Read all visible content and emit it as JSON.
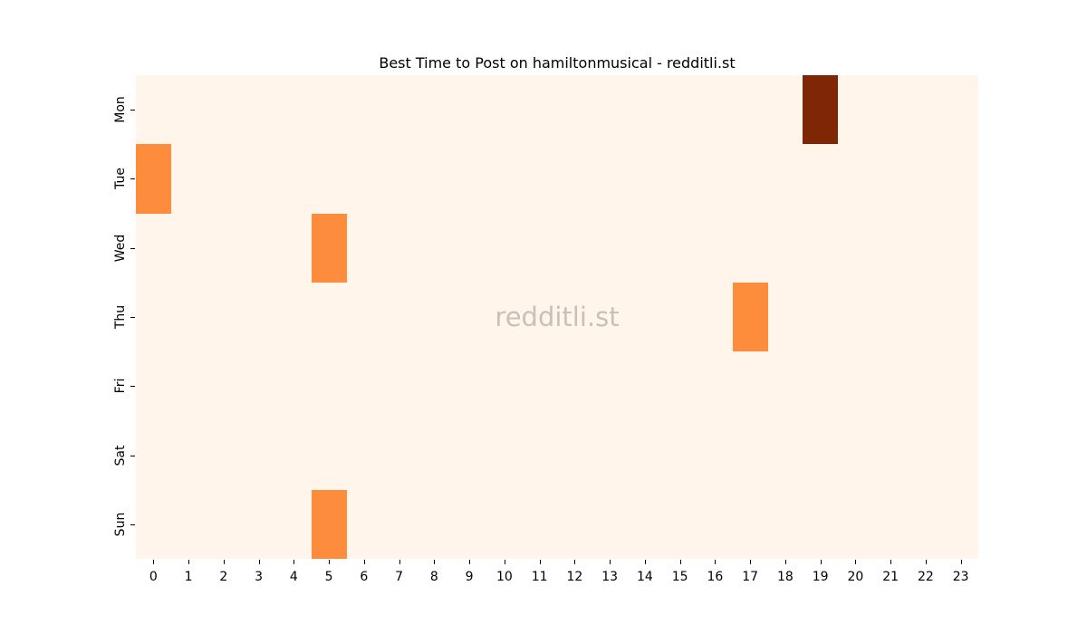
{
  "figure": {
    "background": "#ffffff"
  },
  "watermark": {
    "text": "redditli.st",
    "color": "#c8c1ba"
  },
  "chart_data": {
    "type": "heatmap",
    "title": "Best Time to Post on hamiltonmusical - redditli.st",
    "xlabel": "",
    "ylabel": "",
    "x_labels": [
      "0",
      "1",
      "2",
      "3",
      "4",
      "5",
      "6",
      "7",
      "8",
      "9",
      "10",
      "11",
      "12",
      "13",
      "14",
      "15",
      "16",
      "17",
      "18",
      "19",
      "20",
      "21",
      "22",
      "23"
    ],
    "y_labels": [
      "Mon",
      "Tue",
      "Wed",
      "Thu",
      "Fri",
      "Sat",
      "Sun"
    ],
    "colormap": "Oranges",
    "value_colors": {
      "0": "#fff5eb",
      "1": "#fd8d3c",
      "2": "#7f2704"
    },
    "matrix": [
      [
        0,
        0,
        0,
        0,
        0,
        0,
        0,
        0,
        0,
        0,
        0,
        0,
        0,
        0,
        0,
        0,
        0,
        0,
        0,
        2,
        0,
        0,
        0,
        0
      ],
      [
        1,
        0,
        0,
        0,
        0,
        0,
        0,
        0,
        0,
        0,
        0,
        0,
        0,
        0,
        0,
        0,
        0,
        0,
        0,
        0,
        0,
        0,
        0,
        0
      ],
      [
        0,
        0,
        0,
        0,
        0,
        1,
        0,
        0,
        0,
        0,
        0,
        0,
        0,
        0,
        0,
        0,
        0,
        0,
        0,
        0,
        0,
        0,
        0,
        0
      ],
      [
        0,
        0,
        0,
        0,
        0,
        0,
        0,
        0,
        0,
        0,
        0,
        0,
        0,
        0,
        0,
        0,
        0,
        1,
        0,
        0,
        0,
        0,
        0,
        0
      ],
      [
        0,
        0,
        0,
        0,
        0,
        0,
        0,
        0,
        0,
        0,
        0,
        0,
        0,
        0,
        0,
        0,
        0,
        0,
        0,
        0,
        0,
        0,
        0,
        0
      ],
      [
        0,
        0,
        0,
        0,
        0,
        0,
        0,
        0,
        0,
        0,
        0,
        0,
        0,
        0,
        0,
        0,
        0,
        0,
        0,
        0,
        0,
        0,
        0,
        0
      ],
      [
        0,
        0,
        0,
        0,
        0,
        1,
        0,
        0,
        0,
        0,
        0,
        0,
        0,
        0,
        0,
        0,
        0,
        0,
        0,
        0,
        0,
        0,
        0,
        0
      ]
    ],
    "highlight_cells": [
      {
        "day": "Mon",
        "hour": 19,
        "value": 2
      },
      {
        "day": "Tue",
        "hour": 0,
        "value": 1
      },
      {
        "day": "Wed",
        "hour": 5,
        "value": 1
      },
      {
        "day": "Thu",
        "hour": 17,
        "value": 1
      },
      {
        "day": "Sun",
        "hour": 5,
        "value": 1
      }
    ],
    "grid": false,
    "legend": false
  }
}
